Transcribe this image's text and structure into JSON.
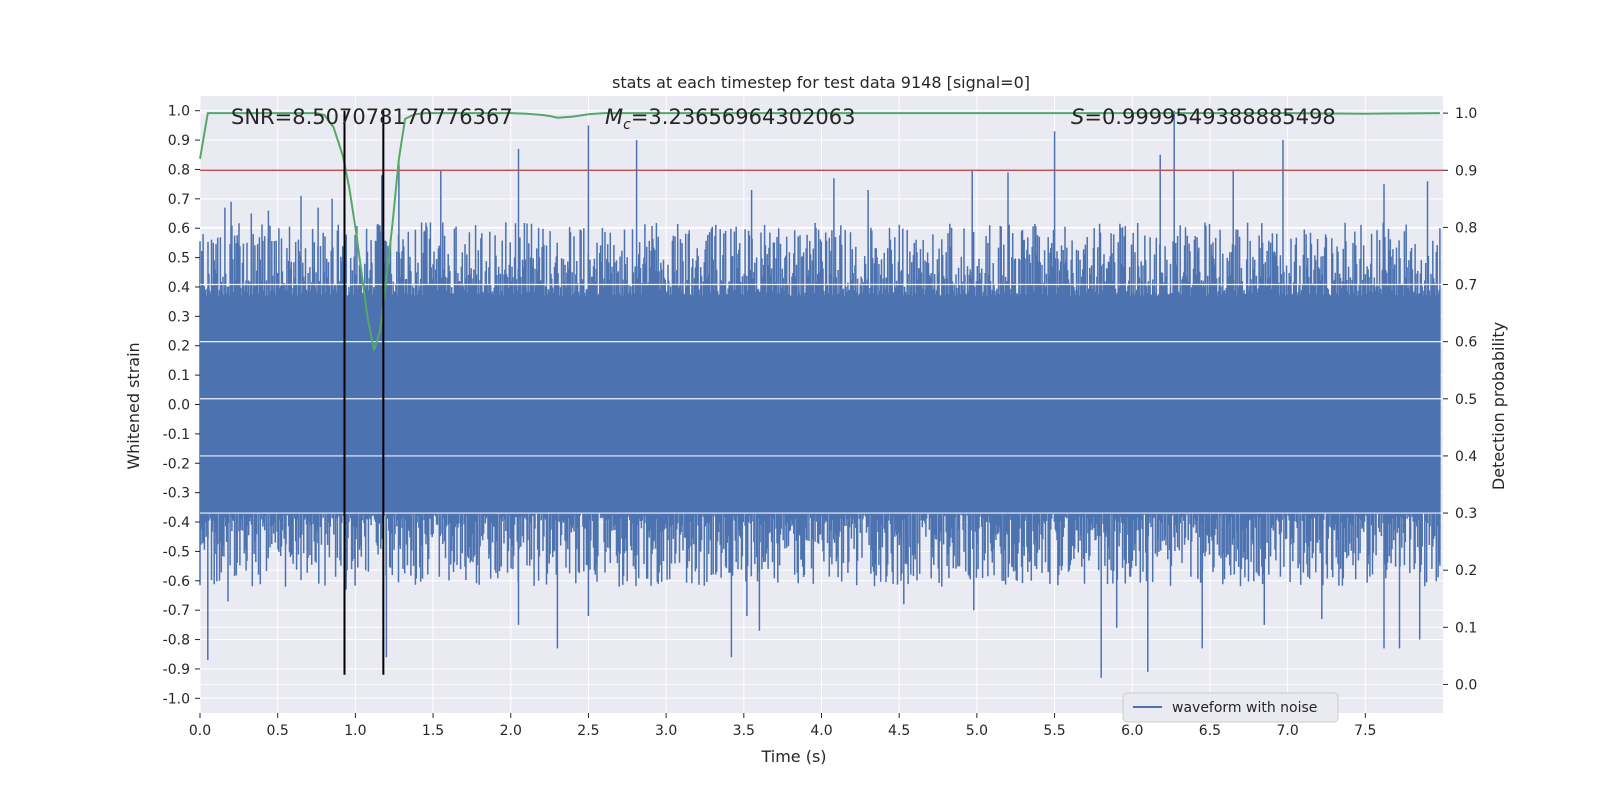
{
  "chart_data": {
    "type": "line",
    "title": "stats at each timestep for test data 9148 [signal=0]",
    "xlabel": "Time (s)",
    "ylabel": "Whitened strain",
    "y2label": "Detection probability",
    "xlim": [
      0.0,
      8.0
    ],
    "ylim": [
      -1.05,
      1.05
    ],
    "y2lim": [
      -0.05,
      1.03
    ],
    "xticks": [
      "0.0",
      "0.5",
      "1.0",
      "1.5",
      "2.0",
      "2.5",
      "3.0",
      "3.5",
      "4.0",
      "4.5",
      "5.0",
      "5.5",
      "6.0",
      "6.5",
      "7.0",
      "7.5"
    ],
    "yticks": [
      "1.0",
      "0.9",
      "0.8",
      "0.7",
      "0.6",
      "0.5",
      "0.4",
      "0.3",
      "0.2",
      "0.1",
      "0.0",
      "-0.1",
      "-0.2",
      "-0.3",
      "-0.4",
      "-0.5",
      "-0.6",
      "-0.7",
      "-0.8",
      "-0.9",
      "-1.0"
    ],
    "y2ticks": [
      "1.0",
      "0.9",
      "0.8",
      "0.7",
      "0.6",
      "0.5",
      "0.4",
      "0.3",
      "0.2",
      "0.1",
      "0.0"
    ],
    "grid": true,
    "legend_position": "lower-right",
    "legend": [
      "waveform with noise"
    ],
    "annotations": {
      "snr": "SNR=8.507078170776367",
      "mc": "=3.23656964302063",
      "s": "=0.9999549388885498"
    },
    "colors": {
      "waveform": "#4c72b0",
      "probability": "#55a868",
      "threshold": "#c44e52",
      "markers": "#000000",
      "background": "#eaeaf2",
      "grid": "#ffffff"
    },
    "series": [
      {
        "name": "waveform with noise",
        "axis": "left",
        "style": "dense-noise",
        "core_amplitude": 0.37,
        "envelope_amplitude": 0.6,
        "x_range": [
          0.0,
          7.98
        ],
        "peaks": [
          [
            0.02,
            0.58
          ],
          [
            0.16,
            0.67
          ],
          [
            0.2,
            0.69
          ],
          [
            0.33,
            0.65
          ],
          [
            0.44,
            0.66
          ],
          [
            0.65,
            0.71
          ],
          [
            0.76,
            0.67
          ],
          [
            0.85,
            0.7
          ],
          [
            1.17,
            0.78
          ],
          [
            1.28,
            0.82
          ],
          [
            1.55,
            0.8
          ],
          [
            2.05,
            0.87
          ],
          [
            2.5,
            0.95
          ],
          [
            2.81,
            0.9
          ],
          [
            3.55,
            0.73
          ],
          [
            4.08,
            0.77
          ],
          [
            4.3,
            0.73
          ],
          [
            4.97,
            0.8
          ],
          [
            5.2,
            0.79
          ],
          [
            5.5,
            0.93
          ],
          [
            6.18,
            0.85
          ],
          [
            6.27,
            1.0
          ],
          [
            6.65,
            0.8
          ],
          [
            6.97,
            0.9
          ],
          [
            7.62,
            0.75
          ],
          [
            7.9,
            0.76
          ]
        ],
        "troughs": [
          [
            0.05,
            -0.87
          ],
          [
            0.18,
            -0.67
          ],
          [
            0.55,
            -0.62
          ],
          [
            0.94,
            -0.63
          ],
          [
            1.2,
            -0.86
          ],
          [
            2.05,
            -0.75
          ],
          [
            2.3,
            -0.83
          ],
          [
            2.5,
            -0.72
          ],
          [
            3.42,
            -0.86
          ],
          [
            3.52,
            -0.72
          ],
          [
            3.6,
            -0.77
          ],
          [
            4.53,
            -0.68
          ],
          [
            4.98,
            -0.7
          ],
          [
            5.8,
            -0.93
          ],
          [
            5.9,
            -0.76
          ],
          [
            6.1,
            -0.91
          ],
          [
            6.45,
            -0.83
          ],
          [
            6.85,
            -0.75
          ],
          [
            7.22,
            -0.73
          ],
          [
            7.62,
            -0.83
          ],
          [
            7.72,
            -0.83
          ],
          [
            7.85,
            -0.8
          ]
        ]
      },
      {
        "name": "detection probability",
        "axis": "right",
        "x": [
          0.0,
          0.05,
          0.1,
          0.5,
          0.75,
          0.8,
          0.86,
          0.92,
          0.96,
          1.0,
          1.04,
          1.08,
          1.12,
          1.16,
          1.2,
          1.24,
          1.28,
          1.32,
          1.38,
          1.45,
          1.5,
          2.0,
          2.1,
          2.2,
          2.25,
          2.3,
          2.4,
          2.5,
          2.6,
          3.0,
          4.0,
          5.0,
          6.0,
          7.0,
          7.5,
          7.98
        ],
        "values": [
          0.92,
          1.0,
          1.0,
          1.0,
          1.0,
          0.997,
          0.975,
          0.925,
          0.87,
          0.8,
          0.72,
          0.64,
          0.585,
          0.62,
          0.71,
          0.81,
          0.92,
          0.99,
          0.998,
          1.0,
          1.0,
          1.0,
          0.999,
          0.997,
          0.995,
          0.992,
          0.994,
          0.998,
          1.0,
          1.0,
          1.0,
          1.0,
          1.0,
          1.0,
          0.999,
          1.0
        ]
      },
      {
        "name": "threshold",
        "axis": "right",
        "values": [
          0.9
        ]
      },
      {
        "name": "event window",
        "axis": "left",
        "x": [
          0.93,
          1.18
        ],
        "range": [
          -0.92,
          1.0
        ]
      }
    ]
  }
}
